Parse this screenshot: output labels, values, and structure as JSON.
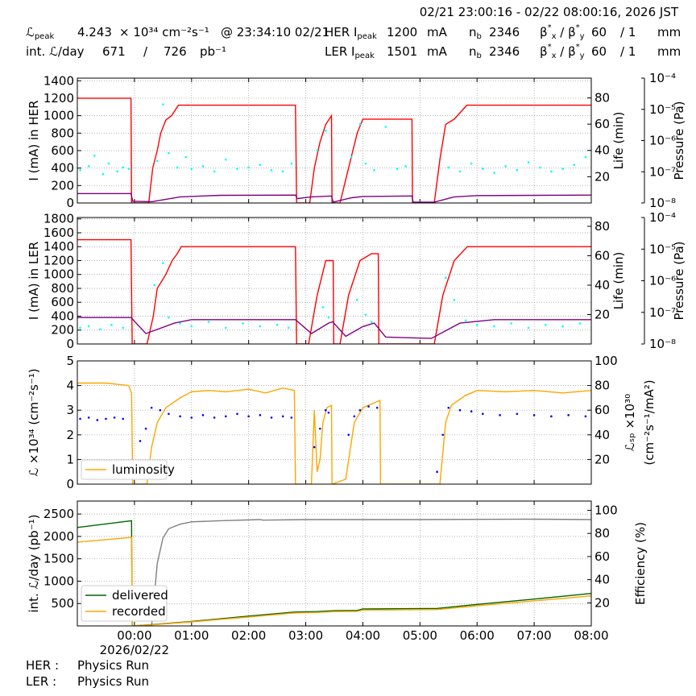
{
  "header": {
    "title": "02/21 23:00:16 - 02/22 08:00:16, 2026 JST",
    "rows": [
      [
        [
          {
            "text": "ℒ"
          },
          {
            "sub": "peak"
          }
        ],
        "4.243",
        "× 10³⁴ cm⁻²s⁻¹",
        "@ 23:34:10 02/21",
        [
          {
            "text": "HER I"
          },
          {
            "sub": "peak"
          }
        ],
        "1200",
        "mA",
        [
          {
            "text": "n"
          },
          {
            "sub": "b"
          }
        ],
        "2346",
        [
          {
            "text": "β"
          },
          {
            "sup": "*"
          },
          {
            "sub": "x"
          },
          {
            "text": " / β"
          },
          {
            "sup": "*"
          },
          {
            "sub": "y"
          }
        ],
        "60",
        "/ 1",
        "mm"
      ],
      [
        "int. ℒ/day",
        "671",
        "/",
        "726",
        "pb⁻¹",
        [
          {
            "text": "LER I"
          },
          {
            "sub": "peak"
          }
        ],
        "1501",
        "mA",
        [
          {
            "text": "n"
          },
          {
            "sub": "b"
          }
        ],
        "2346",
        [
          {
            "text": "β"
          },
          {
            "sup": "*"
          },
          {
            "sub": "x"
          },
          {
            "text": " / β"
          },
          {
            "sup": "*"
          },
          {
            "sub": "y"
          }
        ],
        "60",
        "/ 1",
        "mm"
      ]
    ]
  },
  "chart_data": [
    {
      "type": "line",
      "grid": true,
      "ylabel": "I (mA) in HER",
      "ylim": [
        0,
        1430
      ],
      "yticks": [
        0,
        200,
        400,
        600,
        800,
        1000,
        1200,
        1400
      ],
      "y2label": "Life (min)",
      "y2lim": [
        0,
        95
      ],
      "y2ticks": [
        20,
        40,
        60,
        80
      ],
      "y3label": "Pressure (Pa)",
      "y3log": true,
      "y3lim": [
        1e-08,
        0.0001
      ],
      "y3ticks": [
        {
          "value": 1e-08,
          "label": "10⁻⁸"
        },
        {
          "value": 1e-07,
          "label": "10⁻⁷"
        },
        {
          "value": 1e-06,
          "label": "10⁻⁶"
        },
        {
          "value": 1e-05,
          "label": "10⁻⁵"
        },
        {
          "value": 0.0001,
          "label": "10⁻⁴"
        }
      ],
      "series": [
        {
          "color": "#ff0000",
          "mode": "line",
          "x": [
            -1,
            -0.06,
            -0.05,
            0.25,
            0.32,
            0.4,
            0.46,
            0.55,
            0.65,
            0.77,
            2.82,
            2.84,
            3.07,
            3.15,
            3.25,
            3.35,
            3.45,
            3.46,
            3.6,
            3.75,
            3.9,
            4.0,
            4.86,
            4.87,
            5.25,
            5.35,
            5.45,
            5.6,
            5.82,
            8
          ],
          "values": [
            1200,
            1200,
            0,
            0,
            400,
            600,
            800,
            950,
            1000,
            1120,
            1120,
            0,
            0,
            400,
            700,
            900,
            1000,
            0,
            0,
            400,
            800,
            960,
            960,
            0,
            0,
            500,
            900,
            960,
            1120,
            1120
          ]
        },
        {
          "color": "#800080",
          "mode": "line",
          "x": [
            -1,
            -0.06,
            -0.03,
            0.3,
            0.8,
            1.5,
            2.82,
            2.85,
            3.1,
            3.45,
            3.48,
            3.8,
            4.0,
            4.86,
            4.88,
            5.25,
            5.6,
            6.0,
            8
          ],
          "values": [
            108,
            108,
            20,
            15,
            70,
            88,
            90,
            50,
            70,
            80,
            10,
            60,
            75,
            80,
            10,
            10,
            70,
            85,
            90
          ]
        },
        {
          "color": "#00ffff",
          "mode": "markers",
          "axis": "y2",
          "x": [
            -0.95,
            -0.8,
            -0.7,
            -0.55,
            -0.45,
            -0.3,
            -0.2,
            -0.1,
            0.4,
            0.5,
            0.6,
            0.75,
            0.9,
            1.0,
            1.2,
            1.4,
            1.6,
            1.8,
            2.0,
            2.2,
            2.4,
            2.6,
            2.75,
            3.2,
            3.35,
            3.8,
            3.95,
            4.05,
            4.2,
            4.4,
            4.6,
            4.75,
            5.5,
            5.7,
            5.9,
            6.1,
            6.3,
            6.5,
            6.7,
            6.9,
            7.1,
            7.3,
            7.5,
            7.7,
            7.9
          ],
          "values": [
            25,
            28,
            36,
            22,
            30,
            24,
            27,
            26,
            32,
            75,
            38,
            27,
            35,
            26,
            28,
            24,
            33,
            26,
            27,
            29,
            25,
            24,
            30,
            40,
            55,
            35,
            60,
            30,
            25,
            58,
            26,
            28,
            27,
            24,
            30,
            26,
            23,
            28,
            25,
            31,
            27,
            24,
            26,
            29,
            35
          ]
        }
      ]
    },
    {
      "type": "line",
      "grid": true,
      "ylabel": "I (mA) in LER",
      "ylim": [
        0,
        1820
      ],
      "yticks": [
        0,
        200,
        400,
        600,
        800,
        1000,
        1200,
        1400,
        1600,
        1800
      ],
      "y2label": "Life (min)",
      "y2lim": [
        0,
        86
      ],
      "y2ticks": [
        20,
        40,
        60,
        80
      ],
      "y3label": "Pressure (Pa)",
      "y3log": true,
      "y3lim": [
        1e-08,
        0.0001
      ],
      "y3ticks": [
        {
          "value": 1e-08,
          "label": "10⁻⁸"
        },
        {
          "value": 1e-07,
          "label": "10⁻⁷"
        },
        {
          "value": 1e-06,
          "label": "10⁻⁶"
        },
        {
          "value": 1e-05,
          "label": "10⁻⁵"
        },
        {
          "value": 0.0001,
          "label": "10⁻⁴"
        }
      ],
      "series": [
        {
          "color": "#ff0000",
          "mode": "line",
          "x": [
            -1,
            -0.06,
            -0.04,
            0.22,
            0.33,
            0.4,
            0.55,
            0.66,
            0.75,
            0.82,
            2.82,
            2.84,
            3.05,
            3.2,
            3.35,
            3.48,
            3.49,
            3.6,
            3.75,
            3.95,
            4.15,
            4.27,
            4.28,
            5.25,
            5.4,
            5.6,
            5.83,
            8
          ],
          "values": [
            1500,
            1500,
            0,
            0,
            400,
            800,
            1000,
            1200,
            1300,
            1400,
            1400,
            0,
            0,
            700,
            1200,
            1200,
            0,
            0,
            700,
            1200,
            1300,
            1300,
            0,
            0,
            700,
            1200,
            1400,
            1400
          ]
        },
        {
          "color": "#800080",
          "mode": "line",
          "x": [
            -1,
            -0.06,
            0.2,
            0.7,
            1.0,
            2.82,
            3.1,
            3.4,
            3.47,
            3.7,
            4.0,
            4.2,
            4.4,
            5.2,
            5.7,
            6.3,
            8
          ],
          "values": [
            380,
            380,
            150,
            300,
            350,
            350,
            150,
            300,
            320,
            110,
            250,
            300,
            100,
            80,
            300,
            350,
            350
          ]
        },
        {
          "color": "#00ffff",
          "mode": "markers",
          "axis": "y2",
          "x": [
            -0.95,
            -0.8,
            -0.6,
            -0.4,
            -0.2,
            0.35,
            0.5,
            0.6,
            0.8,
            1.0,
            1.3,
            1.6,
            1.9,
            2.2,
            2.5,
            2.7,
            3.3,
            3.4,
            3.9,
            4.05,
            4.15,
            5.45,
            5.6,
            5.8,
            6.0,
            6.3,
            6.6,
            6.9,
            7.2,
            7.5,
            7.8
          ],
          "values": [
            11,
            12,
            10,
            13,
            11,
            40,
            55,
            18,
            14,
            12,
            15,
            11,
            14,
            12,
            13,
            11,
            25,
            18,
            30,
            20,
            15,
            45,
            30,
            16,
            13,
            12,
            14,
            11,
            13,
            12,
            14
          ]
        }
      ]
    },
    {
      "type": "line",
      "grid": true,
      "ylabel": "ℒ ×10³⁴ (cm⁻²s⁻¹)",
      "ylim": [
        0,
        5
      ],
      "yticks": [
        0,
        1,
        2,
        3,
        4,
        5
      ],
      "y2label": [
        "ℒₛₚ ×10³⁰",
        "(cm⁻²s⁻¹/mA²)"
      ],
      "y2lim": [
        0,
        100
      ],
      "y2ticks": [
        20,
        40,
        60,
        80,
        100
      ],
      "legend": "lower left",
      "series": [
        {
          "name": "luminosity",
          "color": "#ffa500",
          "mode": "line",
          "x": [
            -1,
            -0.5,
            -0.1,
            -0.05,
            -0.03,
            0.22,
            0.3,
            0.4,
            0.55,
            0.8,
            1.0,
            1.3,
            1.6,
            2.0,
            2.3,
            2.6,
            2.8,
            2.82,
            3.1,
            3.15,
            3.2,
            3.25,
            3.3,
            3.37,
            3.45,
            3.46,
            3.7,
            3.85,
            4.0,
            4.2,
            4.3,
            4.31,
            5.35,
            5.45,
            5.55,
            5.8,
            6.0,
            6.5,
            7.0,
            7.5,
            8
          ],
          "values": [
            4.1,
            4.1,
            4.0,
            3.7,
            0,
            0,
            1.5,
            2.5,
            3.1,
            3.5,
            3.75,
            3.8,
            3.75,
            3.85,
            3.7,
            3.9,
            3.8,
            0,
            0,
            3.0,
            0.5,
            1.0,
            2.5,
            3.1,
            3.2,
            0,
            0.2,
            2.5,
            3.1,
            3.3,
            3.4,
            0,
            0,
            2.5,
            3.2,
            3.6,
            3.8,
            3.75,
            3.8,
            3.7,
            3.8
          ]
        },
        {
          "color": "#0000ff",
          "mode": "markers",
          "axis": "y2",
          "x": [
            -0.95,
            -0.8,
            -0.65,
            -0.5,
            -0.35,
            -0.2,
            0.1,
            0.2,
            0.3,
            0.45,
            0.6,
            0.8,
            1.0,
            1.2,
            1.4,
            1.6,
            1.8,
            2.0,
            2.2,
            2.4,
            2.6,
            2.75,
            3.15,
            3.25,
            3.35,
            3.4,
            3.75,
            3.85,
            3.95,
            4.1,
            4.25,
            5.3,
            5.4,
            5.5,
            5.7,
            5.9,
            6.1,
            6.4,
            6.7,
            7.0,
            7.3,
            7.6,
            7.9
          ],
          "values": [
            53,
            54,
            52,
            53,
            54,
            53,
            35,
            45,
            62,
            60,
            57,
            55,
            54,
            56,
            54,
            55,
            57,
            55,
            56,
            54,
            55,
            54,
            30,
            45,
            60,
            58,
            40,
            55,
            60,
            63,
            62,
            10,
            40,
            62,
            60,
            59,
            57,
            56,
            57,
            56,
            55,
            56,
            55
          ]
        }
      ]
    },
    {
      "type": "line",
      "grid": true,
      "ylabel": "int. ℒ/day (pb⁻¹)",
      "ylim": [
        0,
        2790
      ],
      "yticks": [
        500,
        1000,
        1500,
        2000,
        2500
      ],
      "y2label": "Efficiency (%)",
      "y2lim": [
        0,
        108
      ],
      "y2ticks": [
        20,
        40,
        60,
        80,
        100
      ],
      "xlim": [
        -1,
        8
      ],
      "xticks": [
        {
          "value": 0,
          "label": "00:00"
        },
        {
          "value": 1,
          "label": "01:00"
        },
        {
          "value": 2,
          "label": "02:00"
        },
        {
          "value": 3,
          "label": "03:00"
        },
        {
          "value": 4,
          "label": "04:00"
        },
        {
          "value": 5,
          "label": "05:00"
        },
        {
          "value": 6,
          "label": "06:00"
        },
        {
          "value": 7,
          "label": "07:00"
        },
        {
          "value": 8,
          "label": "08:00"
        }
      ],
      "date_label": "2026/02/22",
      "legend": "lower left",
      "series": [
        {
          "name": "delivered",
          "color": "#006400",
          "mode": "line",
          "x": [
            -1,
            -0.05,
            -0.04,
            0.2,
            1.0,
            2.0,
            2.8,
            3.2,
            3.5,
            3.9,
            4.0,
            5.3,
            6.0,
            7.0,
            8
          ],
          "values": [
            2200,
            2350,
            0,
            20,
            100,
            220,
            310,
            320,
            340,
            345,
            380,
            390,
            480,
            600,
            726
          ]
        },
        {
          "name": "recorded",
          "color": "#ffa500",
          "mode": "line",
          "x": [
            -1,
            -0.05,
            -0.04,
            0.2,
            1.0,
            2.0,
            2.8,
            3.2,
            3.5,
            3.9,
            4.0,
            5.3,
            6.0,
            7.0,
            8
          ],
          "values": [
            1870,
            1980,
            0,
            15,
            90,
            200,
            290,
            300,
            320,
            325,
            355,
            365,
            450,
            560,
            671
          ]
        },
        {
          "color": "#808080",
          "mode": "line",
          "axis": "y2",
          "x": [
            0.3,
            0.4,
            0.5,
            0.6,
            0.8,
            1.0,
            1.5,
            2.2,
            2.25,
            3.0,
            5.0,
            7.0,
            8
          ],
          "values": [
            0,
            54,
            76,
            84,
            88,
            90,
            91,
            92,
            91.5,
            92,
            92,
            92.3,
            92
          ]
        }
      ]
    }
  ],
  "footer": {
    "rows": [
      [
        "HER :",
        "Physics Run"
      ],
      [
        "LER :",
        "Physics Run"
      ]
    ]
  }
}
